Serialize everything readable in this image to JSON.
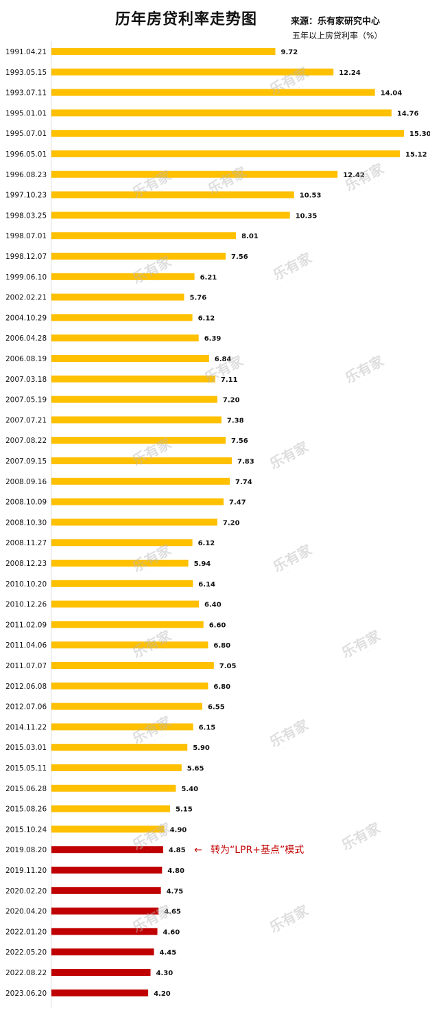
{
  "header": {
    "title": "历年房贷利率走势图",
    "source": "来源：乐有家研究中心",
    "unit": "五年以上房贷利率（%）"
  },
  "watermark": {
    "text": "乐有家"
  },
  "colors": {
    "before_lpr": "#ffc000",
    "after_lpr": "#c00000",
    "annotation": "#c00000",
    "watermark": "#b8b8b8"
  },
  "annotation": {
    "arrow": "←",
    "text": "转为“LPR+基点”模式",
    "category": "2019.08.20"
  },
  "chart_data": {
    "type": "bar",
    "orientation": "horizontal",
    "categories": [
      "1991.04.21",
      "1993.05.15",
      "1993.07.11",
      "1995.01.01",
      "1995.07.01",
      "1996.05.01",
      "1996.08.23",
      "1997.10.23",
      "1998.03.25",
      "1998.07.01",
      "1998.12.07",
      "1999.06.10",
      "2002.02.21",
      "2004.10.29",
      "2006.04.28",
      "2006.08.19",
      "2007.03.18",
      "2007.05.19",
      "2007.07.21",
      "2007.08.22",
      "2007.09.15",
      "2008.09.16",
      "2008.10.09",
      "2008.10.30",
      "2008.11.27",
      "2008.12.23",
      "2010.10.20",
      "2010.12.26",
      "2011.02.09",
      "2011.04.06",
      "2011.07.07",
      "2012.06.08",
      "2012.07.06",
      "2014.11.22",
      "2015.03.01",
      "2015.05.11",
      "2015.06.28",
      "2015.08.26",
      "2015.10.24",
      "2019.08.20",
      "2019.11.20",
      "2020.02.20",
      "2020.04.20",
      "2022.01.20",
      "2022.05.20",
      "2022.08.22",
      "2023.06.20"
    ],
    "values": [
      9.72,
      12.24,
      14.04,
      14.76,
      15.3,
      15.12,
      12.42,
      10.53,
      10.35,
      8.01,
      7.56,
      6.21,
      5.76,
      6.12,
      6.39,
      6.84,
      7.11,
      7.2,
      7.38,
      7.56,
      7.83,
      7.74,
      7.47,
      7.2,
      6.12,
      5.94,
      6.14,
      6.4,
      6.6,
      6.8,
      7.05,
      6.8,
      6.55,
      6.15,
      5.9,
      5.65,
      5.4,
      5.15,
      4.9,
      4.85,
      4.8,
      4.75,
      4.65,
      4.6,
      4.45,
      4.3,
      4.2
    ],
    "data_labels": [
      "9.72",
      "12.24",
      "14.04",
      "14.76",
      "15.30",
      "15.12",
      "12.42",
      "10.53",
      "10.35",
      "8.01",
      "7.56",
      "6.21",
      "5.76",
      "6.12",
      "6.39",
      "6.84",
      "7.11",
      "7.20",
      "7.38",
      "7.56",
      "7.83",
      "7.74",
      "7.47",
      "7.20",
      "6.12",
      "5.94",
      "6.14",
      "6.40",
      "6.60",
      "6.80",
      "7.05",
      "6.80",
      "6.55",
      "6.15",
      "5.90",
      "5.65",
      "5.40",
      "5.15",
      "4.90",
      "4.85",
      "4.80",
      "4.75",
      "4.65",
      "4.60",
      "4.45",
      "4.30",
      "4.20"
    ],
    "lpr_start_index": 39,
    "xlim": [
      0,
      15.3
    ],
    "grid": false,
    "legend": "none"
  }
}
